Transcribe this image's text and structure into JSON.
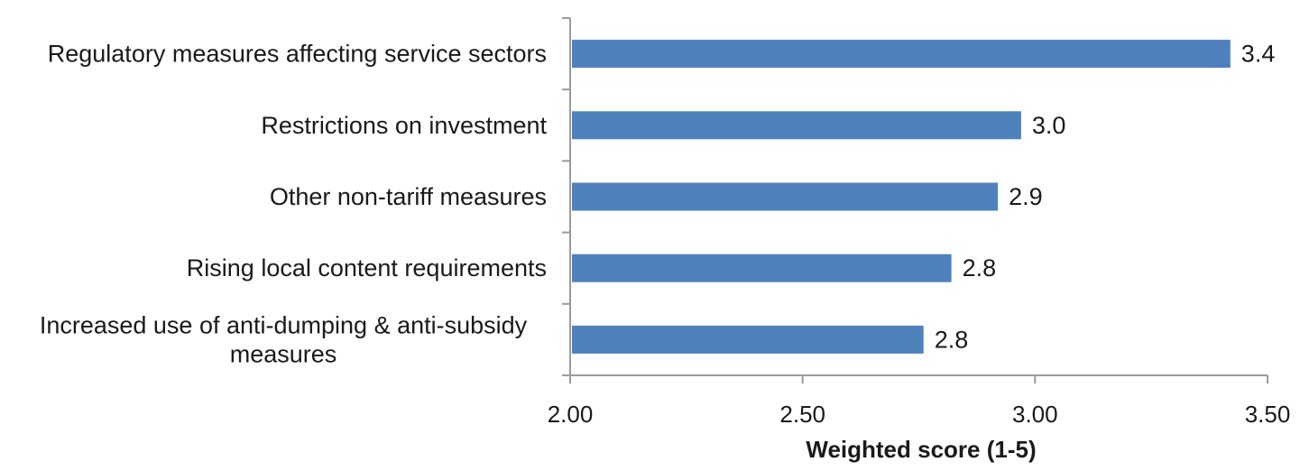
{
  "chart_data": {
    "type": "bar",
    "orientation": "horizontal",
    "categories": [
      "Regulatory measures affecting service sectors",
      "Restrictions on investment",
      "Other non-tariff measures",
      "Rising local content requirements",
      "Increased use of anti-dumping & anti-subsidy measures"
    ],
    "values": [
      3.42,
      2.97,
      2.92,
      2.82,
      2.76
    ],
    "data_labels": [
      "3.4",
      "3.0",
      "2.9",
      "2.8",
      "2.8"
    ],
    "title": "",
    "xlabel": "Weighted score (1-5)",
    "ylabel": "",
    "xlim": [
      2.0,
      3.5
    ],
    "xticks": [
      2.0,
      2.5,
      3.0,
      3.5
    ],
    "xtick_labels": [
      "2.00",
      "2.50",
      "3.00",
      "3.50"
    ],
    "grid": false,
    "legend": "none",
    "colors": {
      "bar": "#4f81bd",
      "axis": "#9a9a9a",
      "text": "#1a1a1a"
    }
  }
}
